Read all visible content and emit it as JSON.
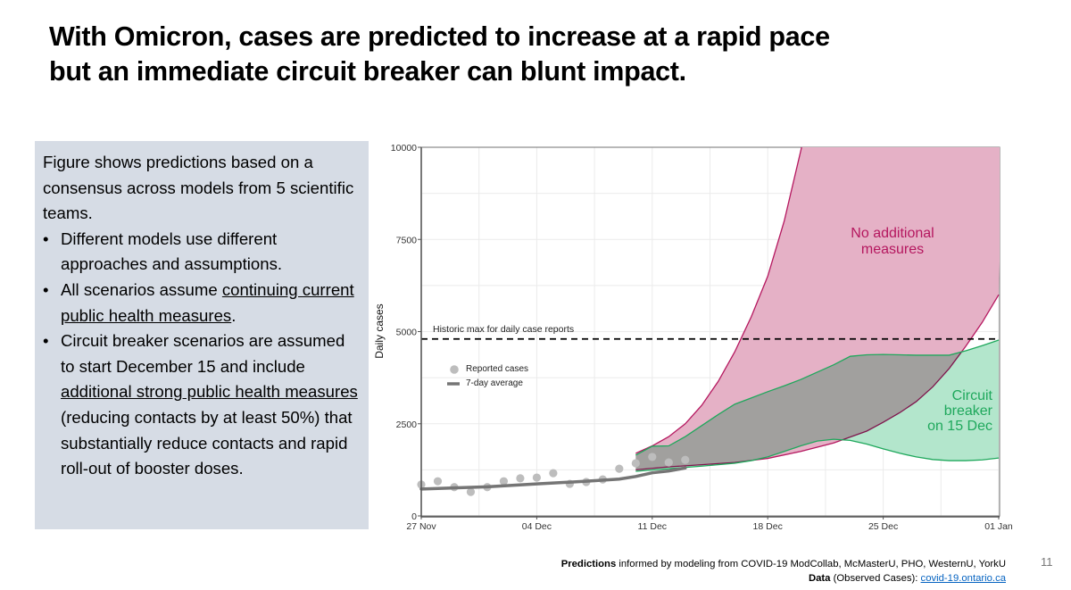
{
  "slide": {
    "title_lines": [
      "With Omicron, cases are predicted to increase at a rapid pace",
      "but an immediate circuit breaker can blunt impact."
    ],
    "page_number": "11"
  },
  "textbox": {
    "intro": "Figure shows predictions based on a consensus across models from 5 scientific teams.",
    "bullets": [
      {
        "segments": [
          {
            "text": "Different models use different approaches and assumptions.",
            "underline": false
          }
        ]
      },
      {
        "segments": [
          {
            "text": "All scenarios assume ",
            "underline": false
          },
          {
            "text": "continuing current public health measures",
            "underline": true
          },
          {
            "text": ".",
            "underline": false
          }
        ]
      },
      {
        "segments": [
          {
            "text": "Circuit breaker scenarios are assumed to start December 15 and include ",
            "underline": false
          },
          {
            "text": "additional strong public health measures",
            "underline": true
          },
          {
            "text": " (reducing contacts by at least 50%) that substantially reduce contacts and rapid roll-out of booster doses.",
            "underline": false
          }
        ]
      }
    ]
  },
  "footer": {
    "line1_bold": "Predictions",
    "line1_rest": " informed by modeling from COVID-19 ModCollab, McMasterU, PHO, WesternU, YorkU",
    "line2_bold": "Data",
    "line2_rest": " (Observed Cases): ",
    "line2_link": "covid-19.ontario.ca"
  },
  "chart_data": {
    "type": "area",
    "ylabel": "Daily cases",
    "xlabel": "",
    "xlim": [
      "2021-11-27",
      "2022-01-01"
    ],
    "ylim": [
      0,
      10000
    ],
    "x_ticks": [
      {
        "date": "2021-11-27",
        "label": "27 Nov"
      },
      {
        "date": "2021-12-04",
        "label": "04 Dec"
      },
      {
        "date": "2021-12-11",
        "label": "11 Dec"
      },
      {
        "date": "2021-12-18",
        "label": "18 Dec"
      },
      {
        "date": "2021-12-25",
        "label": "25 Dec"
      },
      {
        "date": "2022-01-01",
        "label": "01 Jan"
      }
    ],
    "y_ticks": [
      0,
      2500,
      5000,
      7500,
      10000
    ],
    "grid": true,
    "legend": {
      "placement": "top-left",
      "entries": [
        "Reported cases",
        "7-day average"
      ]
    },
    "reference_line": {
      "label": "Historic max for daily case reports",
      "value": 4800,
      "style": "dashed"
    },
    "colors": {
      "no_measures_fill": "#e5b1c6",
      "no_measures_line": "#b5175f",
      "circuit_fill": "#b3e6cc",
      "circuit_line": "#1fa85c",
      "reported": "#bdbdbd",
      "average": "#757575"
    },
    "reported_cases": [
      {
        "date": "2021-11-27",
        "value": 850
      },
      {
        "date": "2021-11-28",
        "value": 940
      },
      {
        "date": "2021-11-29",
        "value": 780
      },
      {
        "date": "2021-11-30",
        "value": 650
      },
      {
        "date": "2021-12-01",
        "value": 780
      },
      {
        "date": "2021-12-02",
        "value": 940
      },
      {
        "date": "2021-12-03",
        "value": 1020
      },
      {
        "date": "2021-12-04",
        "value": 1040
      },
      {
        "date": "2021-12-05",
        "value": 1160
      },
      {
        "date": "2021-12-06",
        "value": 870
      },
      {
        "date": "2021-12-07",
        "value": 920
      },
      {
        "date": "2021-12-08",
        "value": 990
      },
      {
        "date": "2021-12-09",
        "value": 1280
      },
      {
        "date": "2021-12-10",
        "value": 1430
      },
      {
        "date": "2021-12-11",
        "value": 1600
      },
      {
        "date": "2021-12-12",
        "value": 1450
      },
      {
        "date": "2021-12-13",
        "value": 1520
      }
    ],
    "seven_day_average": [
      {
        "date": "2021-11-27",
        "value": 730
      },
      {
        "date": "2021-12-01",
        "value": 790
      },
      {
        "date": "2021-12-04",
        "value": 870
      },
      {
        "date": "2021-12-07",
        "value": 940
      },
      {
        "date": "2021-12-09",
        "value": 1000
      },
      {
        "date": "2021-12-10",
        "value": 1070
      },
      {
        "date": "2021-12-11",
        "value": 1170
      },
      {
        "date": "2021-12-12",
        "value": 1220
      },
      {
        "date": "2021-12-13",
        "value": 1300
      }
    ],
    "scenarios": [
      {
        "name": "No additional measures",
        "label_lines": [
          "No additional",
          "measures"
        ],
        "upper": [
          {
            "date": "2021-12-10",
            "value": 1700
          },
          {
            "date": "2021-12-11",
            "value": 1900
          },
          {
            "date": "2021-12-12",
            "value": 2150
          },
          {
            "date": "2021-12-13",
            "value": 2500
          },
          {
            "date": "2021-12-14",
            "value": 3000
          },
          {
            "date": "2021-12-15",
            "value": 3650
          },
          {
            "date": "2021-12-16",
            "value": 4450
          },
          {
            "date": "2021-12-17",
            "value": 5400
          },
          {
            "date": "2021-12-18",
            "value": 6500
          },
          {
            "date": "2021-12-19",
            "value": 8000
          },
          {
            "date": "2021-12-20",
            "value": 9900
          }
        ],
        "lower": [
          {
            "date": "2021-12-10",
            "value": 1250
          },
          {
            "date": "2021-12-12",
            "value": 1330
          },
          {
            "date": "2021-12-14",
            "value": 1390
          },
          {
            "date": "2021-12-16",
            "value": 1450
          },
          {
            "date": "2021-12-18",
            "value": 1560
          },
          {
            "date": "2021-12-20",
            "value": 1750
          },
          {
            "date": "2021-12-22",
            "value": 1980
          },
          {
            "date": "2021-12-24",
            "value": 2300
          },
          {
            "date": "2021-12-25",
            "value": 2540
          },
          {
            "date": "2021-12-26",
            "value": 2800
          },
          {
            "date": "2021-12-27",
            "value": 3100
          },
          {
            "date": "2021-12-28",
            "value": 3500
          },
          {
            "date": "2021-12-29",
            "value": 4000
          },
          {
            "date": "2021-12-30",
            "value": 4600
          },
          {
            "date": "2021-12-31",
            "value": 5250
          },
          {
            "date": "2022-01-01",
            "value": 6000
          }
        ]
      },
      {
        "name": "Circuit breaker on 15 Dec",
        "label_lines": [
          "Circuit",
          "breaker",
          "on 15 Dec"
        ],
        "upper": [
          {
            "date": "2021-12-10",
            "value": 1650
          },
          {
            "date": "2021-12-11",
            "value": 1890
          },
          {
            "date": "2021-12-12",
            "value": 1900
          },
          {
            "date": "2021-12-13",
            "value": 2150
          },
          {
            "date": "2021-12-14",
            "value": 2450
          },
          {
            "date": "2021-12-15",
            "value": 2750
          },
          {
            "date": "2021-12-16",
            "value": 3030
          },
          {
            "date": "2021-12-17",
            "value": 3200
          },
          {
            "date": "2021-12-18",
            "value": 3370
          },
          {
            "date": "2021-12-19",
            "value": 3530
          },
          {
            "date": "2021-12-20",
            "value": 3700
          },
          {
            "date": "2021-12-21",
            "value": 3900
          },
          {
            "date": "2021-12-22",
            "value": 4100
          },
          {
            "date": "2021-12-23",
            "value": 4330
          },
          {
            "date": "2021-12-24",
            "value": 4370
          },
          {
            "date": "2021-12-25",
            "value": 4380
          },
          {
            "date": "2021-12-26",
            "value": 4370
          },
          {
            "date": "2021-12-27",
            "value": 4360
          },
          {
            "date": "2021-12-28",
            "value": 4360
          },
          {
            "date": "2021-12-29",
            "value": 4360
          },
          {
            "date": "2021-12-30",
            "value": 4480
          },
          {
            "date": "2021-12-31",
            "value": 4620
          },
          {
            "date": "2022-01-01",
            "value": 4770
          }
        ],
        "lower": [
          {
            "date": "2021-12-10",
            "value": 1210
          },
          {
            "date": "2021-12-12",
            "value": 1280
          },
          {
            "date": "2021-12-14",
            "value": 1350
          },
          {
            "date": "2021-12-16",
            "value": 1430
          },
          {
            "date": "2021-12-17",
            "value": 1500
          },
          {
            "date": "2021-12-18",
            "value": 1600
          },
          {
            "date": "2021-12-19",
            "value": 1750
          },
          {
            "date": "2021-12-20",
            "value": 1900
          },
          {
            "date": "2021-12-21",
            "value": 2030
          },
          {
            "date": "2021-12-22",
            "value": 2080
          },
          {
            "date": "2021-12-23",
            "value": 2050
          },
          {
            "date": "2021-12-24",
            "value": 1950
          },
          {
            "date": "2021-12-25",
            "value": 1820
          },
          {
            "date": "2021-12-26",
            "value": 1700
          },
          {
            "date": "2021-12-27",
            "value": 1600
          },
          {
            "date": "2021-12-28",
            "value": 1530
          },
          {
            "date": "2021-12-29",
            "value": 1500
          },
          {
            "date": "2021-12-30",
            "value": 1500
          },
          {
            "date": "2021-12-31",
            "value": 1520
          },
          {
            "date": "2022-01-01",
            "value": 1570
          }
        ]
      }
    ]
  }
}
